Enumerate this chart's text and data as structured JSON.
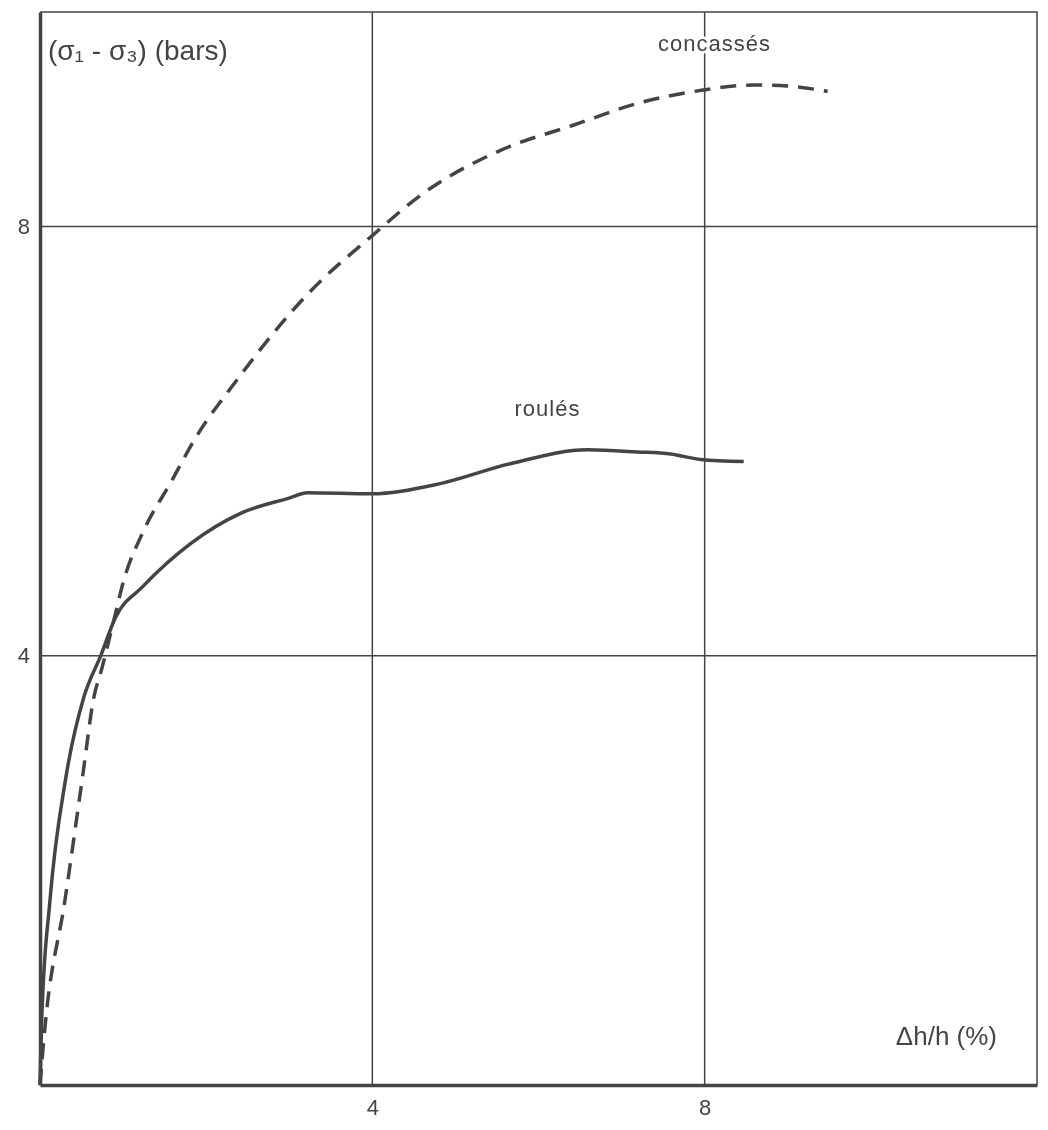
{
  "chart_data": {
    "type": "line",
    "xlabel": "Δh/h (%)",
    "ylabel": "(σ₁ - σ₃) (bars)",
    "xlim": [
      0,
      12
    ],
    "ylim": [
      0,
      10
    ],
    "xticks": [
      4,
      8
    ],
    "yticks": [
      4,
      8
    ],
    "grid": true,
    "series": [
      {
        "name": "concassés",
        "color": "#444444",
        "line_style": "dashed",
        "x": [
          0,
          0.06,
          0.3,
          0.51,
          0.65,
          0.74,
          0.91,
          1.0,
          1.25,
          1.57,
          1.88,
          2.35,
          3.22,
          4.02,
          4.56,
          5.6,
          6.4,
          7.2,
          7.96,
          8.6,
          9.0,
          9.48
        ],
        "values": [
          0,
          0.54,
          1.72,
          2.86,
          3.62,
          3.87,
          4.4,
          4.68,
          5.17,
          5.61,
          6.04,
          6.55,
          7.37,
          7.93,
          8.28,
          8.73,
          8.94,
          9.15,
          9.27,
          9.32,
          9.31,
          9.26
        ]
      },
      {
        "name": "roulés",
        "color": "#444444",
        "line_style": "solid",
        "x": [
          0,
          0.02,
          0.12,
          0.31,
          0.53,
          0.73,
          0.91,
          1.23,
          1.82,
          2.42,
          3.0,
          3.22,
          3.98,
          4.79,
          5.66,
          6.59,
          7.19,
          7.59,
          7.95,
          8.47
        ],
        "values": [
          0,
          0.6,
          1.72,
          2.86,
          3.62,
          4.0,
          4.36,
          4.64,
          5.05,
          5.33,
          5.47,
          5.52,
          5.51,
          5.6,
          5.79,
          5.92,
          5.9,
          5.88,
          5.83,
          5.81
        ]
      }
    ]
  }
}
